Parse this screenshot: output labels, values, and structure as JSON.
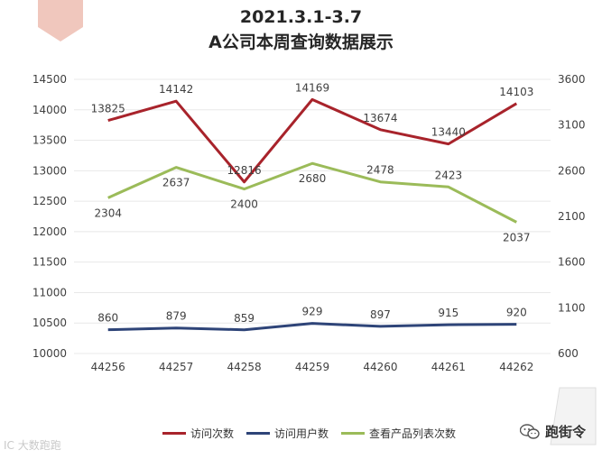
{
  "chart_data": {
    "type": "line",
    "title": "2021.3.1-3.7",
    "subtitle": "A公司本周查询数据展示",
    "categories": [
      "44256",
      "44257",
      "44258",
      "44259",
      "44260",
      "44261",
      "44262"
    ],
    "left_axis": {
      "min": 10000,
      "max": 14500,
      "step": 500,
      "ticks": [
        "10000",
        "10500",
        "11000",
        "11500",
        "12000",
        "12500",
        "13000",
        "13500",
        "14000",
        "14500"
      ]
    },
    "right_axis": {
      "min": 600,
      "max": 3600,
      "step": 500,
      "ticks": [
        "600",
        "1100",
        "1600",
        "2100",
        "2600",
        "3100",
        "3600"
      ]
    },
    "grid": true,
    "legend_position": "bottom",
    "series": [
      {
        "name": "访问次数",
        "axis": "left",
        "color": "#a8232b",
        "values": [
          13825,
          14142,
          12816,
          14169,
          13674,
          13440,
          14103
        ],
        "labels": [
          "13825",
          "14142",
          "12816",
          "14169",
          "13674",
          "13440",
          "14103"
        ]
      },
      {
        "name": "访问用户数",
        "axis": "right",
        "color": "#2e4478",
        "values": [
          860,
          879,
          859,
          929,
          897,
          915,
          920
        ],
        "labels": [
          "860",
          "879",
          "859",
          "929",
          "897",
          "915",
          "920"
        ]
      },
      {
        "name": "查看产品列表次数",
        "axis": "right",
        "color": "#9bbb59",
        "values": [
          2304,
          2637,
          2400,
          2680,
          2478,
          2423,
          2037
        ],
        "labels": [
          "2304",
          "2637",
          "2400",
          "2680",
          "2478",
          "2423",
          "2037"
        ]
      }
    ]
  },
  "watermark": {
    "left_text": "IC 大数跑跑",
    "right_text": "跑街令",
    "icon": "wechat-icon"
  },
  "colors": {
    "corner_tab": "#f0c7bd",
    "grid": "#e8e8e8",
    "text": "#333333"
  }
}
